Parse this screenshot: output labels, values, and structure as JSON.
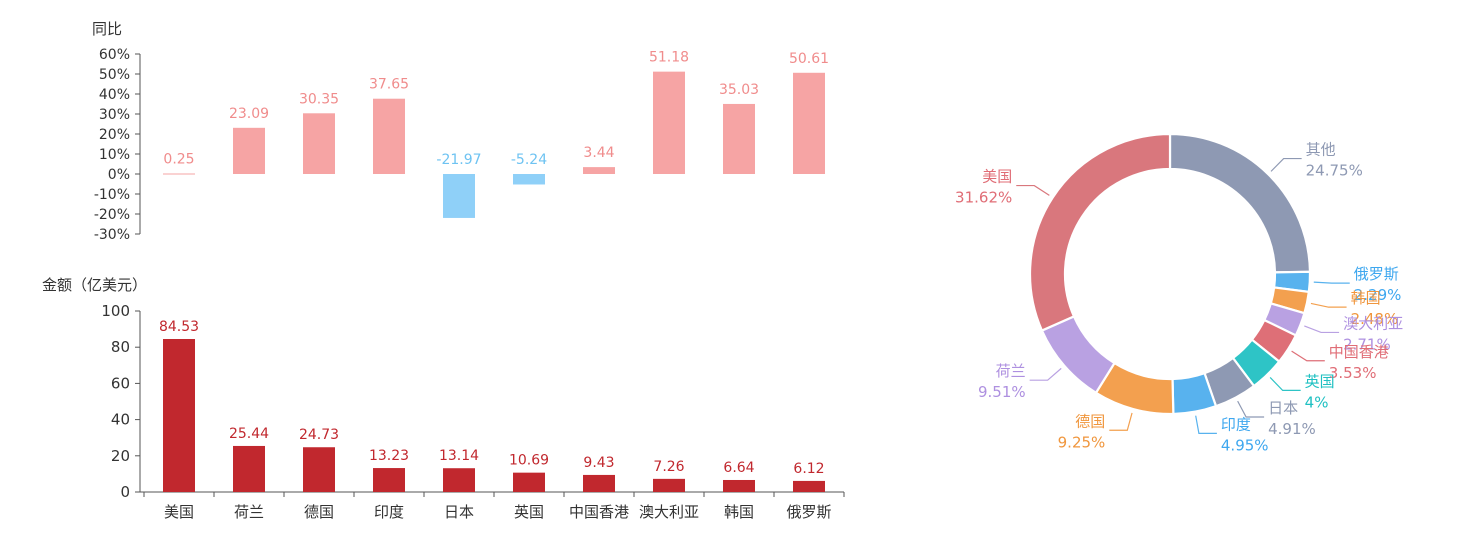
{
  "colors": {
    "pos_bar": "#f6a4a4",
    "pos_label": "#f08c8c",
    "neg_bar": "#8fd0f8",
    "neg_label": "#6ec3f2",
    "amount_bar": "#c1282e",
    "amount_label": "#c1282e",
    "axis": "#555555",
    "tick_text": "#333333"
  },
  "chart_data": [
    {
      "type": "bar",
      "ylabel": "同比",
      "categories": [
        "美国",
        "荷兰",
        "德国",
        "印度",
        "日本",
        "英国",
        "中国香港",
        "澳大利亚",
        "韩国",
        "俄罗斯"
      ],
      "values": [
        0.25,
        23.09,
        30.35,
        37.65,
        -21.97,
        -5.24,
        3.44,
        51.18,
        35.03,
        50.61
      ],
      "value_labels": [
        "0.25",
        "23.09",
        "30.35",
        "37.65",
        "-21.97",
        "-5.24",
        "3.44",
        "51.18",
        "35.03",
        "50.61"
      ],
      "ylim": [
        -30,
        60
      ],
      "yticks": [
        60,
        50,
        40,
        30,
        20,
        10,
        0,
        -10,
        -20,
        -30
      ],
      "ytick_labels": [
        "60%",
        "50%",
        "40%",
        "30%",
        "20%",
        "10%",
        "0%",
        "-10%",
        "-20%",
        "-30%"
      ],
      "grid": false
    },
    {
      "type": "bar",
      "ylabel": "金额（亿美元）",
      "categories": [
        "美国",
        "荷兰",
        "德国",
        "印度",
        "日本",
        "英国",
        "中国香港",
        "澳大利亚",
        "韩国",
        "俄罗斯"
      ],
      "values": [
        84.53,
        25.44,
        24.73,
        13.23,
        13.14,
        10.69,
        9.43,
        7.26,
        6.64,
        6.12
      ],
      "value_labels": [
        "84.53",
        "25.44",
        "24.73",
        "13.23",
        "13.14",
        "10.69",
        "9.43",
        "7.26",
        "6.64",
        "6.12"
      ],
      "ylim": [
        0,
        100
      ],
      "yticks": [
        100,
        80,
        60,
        40,
        20,
        0
      ],
      "ytick_labels": [
        "100",
        "80",
        "60",
        "40",
        "20",
        "0"
      ],
      "grid": false
    },
    {
      "type": "pie",
      "donut": true,
      "slices": [
        {
          "name": "其他",
          "value": 24.75,
          "label": "24.75%",
          "color": "#8e99b3",
          "label_color": "#8e99b3"
        },
        {
          "name": "俄罗斯",
          "value": 2.29,
          "label": "2.29%",
          "color": "#58b2ee",
          "label_color": "#3ea7ef"
        },
        {
          "name": "韩国",
          "value": 2.48,
          "label": "2.48%",
          "color": "#f3a04f",
          "label_color": "#f0963d"
        },
        {
          "name": "澳大利亚",
          "value": 2.71,
          "label": "2.71%",
          "color": "#b9a1e2",
          "label_color": "#ae90e0"
        },
        {
          "name": "中国香港",
          "value": 3.53,
          "label": "3.53%",
          "color": "#de6f77",
          "label_color": "#e06d76"
        },
        {
          "name": "英国",
          "value": 4,
          "label": "4%",
          "color": "#2ec4c6",
          "label_color": "#1fc0c2"
        },
        {
          "name": "日本",
          "value": 4.91,
          "label": "4.91%",
          "color": "#8e99b3",
          "label_color": "#8e99b3"
        },
        {
          "name": "印度",
          "value": 4.95,
          "label": "4.95%",
          "color": "#58b2ee",
          "label_color": "#3ea7ef"
        },
        {
          "name": "德国",
          "value": 9.25,
          "label": "9.25%",
          "color": "#f3a04f",
          "label_color": "#f0963d"
        },
        {
          "name": "荷兰",
          "value": 9.51,
          "label": "9.51%",
          "color": "#b9a1e2",
          "label_color": "#ae90e0"
        },
        {
          "name": "美国",
          "value": 31.62,
          "label": "31.62%",
          "color": "#d9777d",
          "label_color": "#e06d76"
        }
      ]
    }
  ]
}
